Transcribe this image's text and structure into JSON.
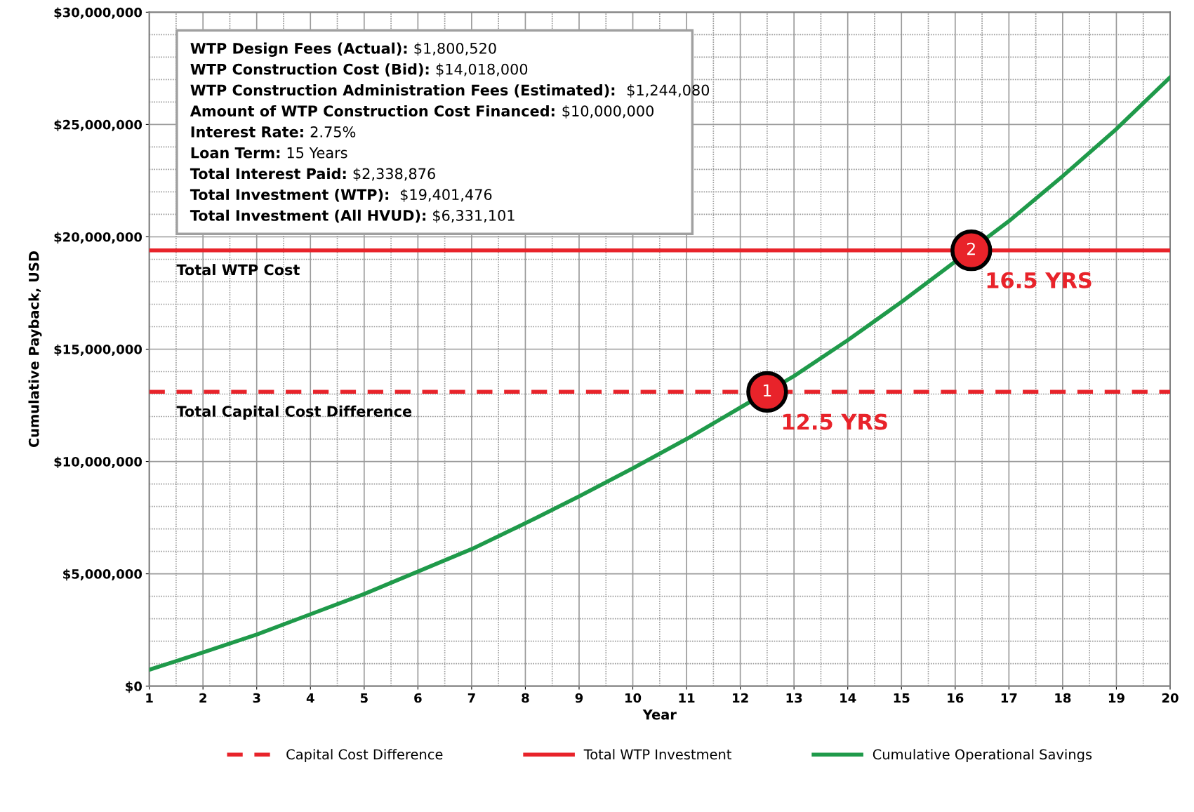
{
  "chart_data": {
    "type": "line",
    "xlabel": "Year",
    "ylabel": "Cumulative Payback, USD",
    "xlim": [
      1,
      20
    ],
    "xticks": [
      1,
      2,
      3,
      4,
      5,
      6,
      7,
      8,
      9,
      10,
      11,
      12,
      13,
      14,
      15,
      16,
      17,
      18,
      19,
      20
    ],
    "ylim": [
      0,
      30000000
    ],
    "yticks": [
      {
        "value": 0,
        "label": "$0"
      },
      {
        "value": 5000000,
        "label": "$5,000,000"
      },
      {
        "value": 10000000,
        "label": "$10,000,000"
      },
      {
        "value": 15000000,
        "label": "$15,000,000"
      },
      {
        "value": 20000000,
        "label": "$20,000,000"
      },
      {
        "value": 25000000,
        "label": "$25,000,000"
      },
      {
        "value": 30000000,
        "label": "$30,000,000"
      }
    ],
    "grid": true,
    "legend": "bottom",
    "series": [
      {
        "name": "Capital Cost Difference",
        "type": "line",
        "line_style": "dashed",
        "color": "#e8232a",
        "x": [
          1,
          20
        ],
        "values": [
          13100000,
          13100000
        ]
      },
      {
        "name": "Total WTP Investment",
        "type": "line",
        "line_style": "solid",
        "color": "#e8232a",
        "x": [
          1,
          20
        ],
        "values": [
          19400000,
          19400000
        ]
      },
      {
        "name": "Cumulative Operational Savings",
        "type": "line",
        "line_style": "solid",
        "color": "#1f9a4a",
        "x": [
          1,
          2,
          3,
          4,
          5,
          6,
          7,
          8,
          9,
          10,
          11,
          12,
          13,
          14,
          15,
          16,
          17,
          18,
          19,
          20
        ],
        "values": [
          730000,
          1500000,
          2300000,
          3200000,
          4100000,
          5100000,
          6100000,
          7250000,
          8450000,
          9700000,
          11000000,
          12400000,
          13800000,
          15400000,
          17100000,
          18900000,
          20700000,
          22700000,
          24800000,
          27100000
        ]
      },
      {
        "type": "scatter",
        "marker": "circle",
        "color": "#e8232a",
        "x": [
          12.5,
          16.3
        ],
        "values": [
          13100000,
          19400000
        ]
      }
    ],
    "annotations": [
      "WTP Design Fees (Actual): $1,800,520",
      "WTP Construction Cost (Bid): $14,018,000",
      "WTP Construction Administration Fees (Estimated):  $1,244,080",
      "Amount of WTP Construction Cost Financed: $10,000,000",
      "Interest Rate: 2.75%",
      "Loan Term: 15 Years",
      "Total Interest Paid: $2,338,876",
      "Total Investment (WTP):  $19,401,476",
      "Total Investment (All HVUD): $6,331,101",
      {
        "text": "Total WTP Cost",
        "x": 1,
        "y": 19400000
      },
      {
        "text": "Total Capital Cost Difference",
        "x": 1,
        "y": 13100000
      },
      {
        "text": "1",
        "x": 12.5,
        "y": 13100000
      },
      {
        "text": "12.5 YRS",
        "x": 12.5,
        "y": 13100000
      },
      {
        "text": "2",
        "x": 16.3,
        "y": 19400000
      },
      {
        "text": "16.5 YRS",
        "x": 16.3,
        "y": 19400000
      }
    ]
  }
}
